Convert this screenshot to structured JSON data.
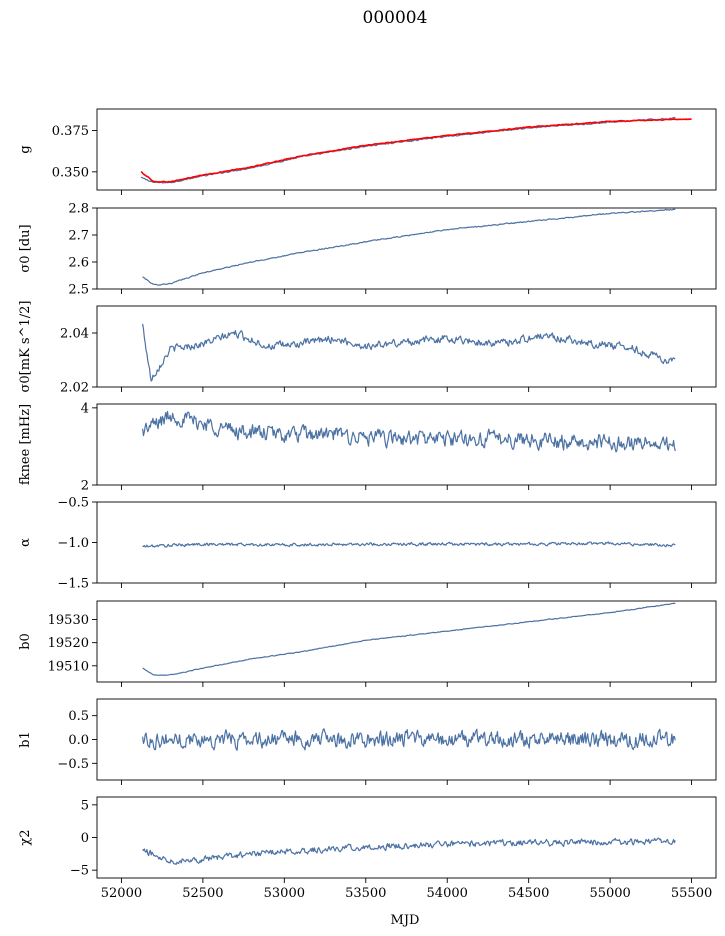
{
  "figure": {
    "title": "000004",
    "xlabel": "MJD"
  },
  "colors": {
    "series": "#4c72a4",
    "fit": "#ff0000"
  },
  "chart_data": [
    {
      "id": "g",
      "type": "line",
      "ylabel": "g",
      "xlim": [
        51850,
        55650
      ],
      "ylim": [
        0.339,
        0.388
      ],
      "yticks": [
        0.35,
        0.375
      ],
      "ytick_labels": [
        "0.350",
        "0.375"
      ],
      "series": [
        {
          "color": "#4c72a4",
          "x": [
            52120,
            52200,
            52300,
            52500,
            52800,
            53100,
            53500,
            54000,
            54500,
            55000,
            55400
          ],
          "y": [
            0.3465,
            0.3435,
            0.3435,
            0.3475,
            0.3525,
            0.359,
            0.3655,
            0.3715,
            0.3765,
            0.38,
            0.3825
          ]
        },
        {
          "color": "#ff0000",
          "x": [
            52120,
            52200,
            52300,
            52500,
            52800,
            53100,
            53500,
            54000,
            54500,
            55000,
            55500
          ],
          "y": [
            0.35,
            0.344,
            0.344,
            0.348,
            0.353,
            0.3595,
            0.366,
            0.372,
            0.377,
            0.3805,
            0.382
          ]
        }
      ]
    },
    {
      "id": "sigma0-du",
      "type": "line",
      "ylabel": "σ0 [du]",
      "xlim": [
        51850,
        55650
      ],
      "ylim": [
        2.5,
        2.8
      ],
      "yticks": [
        2.5,
        2.6,
        2.7,
        2.8
      ],
      "ytick_labels": [
        "2.5",
        "2.6",
        "2.7",
        "2.8"
      ],
      "series": [
        {
          "color": "#4c72a4",
          "x": [
            52130,
            52200,
            52300,
            52500,
            52800,
            53100,
            53500,
            54000,
            54500,
            55000,
            55400
          ],
          "y": [
            2.545,
            2.515,
            2.52,
            2.56,
            2.6,
            2.635,
            2.675,
            2.72,
            2.75,
            2.78,
            2.795
          ]
        }
      ]
    },
    {
      "id": "sigma0-mk",
      "type": "line",
      "ylabel": "σ0[mK s^1/2]",
      "xlim": [
        51850,
        55650
      ],
      "ylim": [
        2.02,
        2.05
      ],
      "yticks": [
        2.02,
        2.04
      ],
      "ytick_labels": [
        "2.02",
        "2.04"
      ],
      "series": [
        {
          "color": "#4c72a4",
          "x": [
            52130,
            52180,
            52300,
            52500,
            52700,
            52900,
            53100,
            53300,
            53500,
            53800,
            54000,
            54300,
            54600,
            54900,
            55100,
            55300,
            55400
          ],
          "y": [
            2.043,
            2.023,
            2.034,
            2.036,
            2.04,
            2.035,
            2.036,
            2.038,
            2.035,
            2.037,
            2.038,
            2.036,
            2.039,
            2.036,
            2.035,
            2.031,
            2.029
          ]
        }
      ]
    },
    {
      "id": "fknee",
      "type": "line",
      "ylabel": "fknee [mHz]",
      "xlim": [
        51850,
        55650
      ],
      "ylim": [
        2.0,
        4.1
      ],
      "yticks": [
        2,
        4
      ],
      "ytick_labels": [
        "2",
        "4"
      ],
      "series": [
        {
          "color": "#4c72a4",
          "x": [
            52130,
            52300,
            52500,
            52700,
            53000,
            53300,
            53600,
            54000,
            54400,
            54800,
            55200,
            55400
          ],
          "y": [
            3.4,
            3.8,
            3.6,
            3.4,
            3.3,
            3.3,
            3.2,
            3.2,
            3.2,
            3.1,
            3.1,
            3.0
          ]
        }
      ]
    },
    {
      "id": "alpha",
      "type": "line",
      "ylabel": "α",
      "xlim": [
        51850,
        55650
      ],
      "ylim": [
        -1.5,
        -0.5
      ],
      "yticks": [
        -1.5,
        -1.0,
        -0.5
      ],
      "ytick_labels": [
        "−1.5",
        "−1.0",
        "−0.5"
      ],
      "series": [
        {
          "color": "#4c72a4",
          "x": [
            52130,
            52500,
            53000,
            53500,
            54000,
            54500,
            55000,
            55400
          ],
          "y": [
            -1.05,
            -1.02,
            -1.03,
            -1.02,
            -1.02,
            -1.02,
            -1.01,
            -1.04
          ]
        }
      ]
    },
    {
      "id": "b0",
      "type": "line",
      "ylabel": "b0",
      "xlim": [
        51850,
        55650
      ],
      "ylim": [
        19503,
        19538
      ],
      "yticks": [
        19510,
        19520,
        19530
      ],
      "ytick_labels": [
        "19510",
        "19520",
        "19530"
      ],
      "series": [
        {
          "color": "#4c72a4",
          "x": [
            52130,
            52200,
            52300,
            52500,
            52800,
            53100,
            53500,
            54000,
            54500,
            55000,
            55400
          ],
          "y": [
            19509,
            19506,
            19506,
            19509,
            19513,
            19516,
            19521,
            19525,
            19529,
            19533,
            19537
          ]
        }
      ]
    },
    {
      "id": "b1",
      "type": "line",
      "ylabel": "b1",
      "xlim": [
        51850,
        55650
      ],
      "ylim": [
        -0.85,
        0.85
      ],
      "yticks": [
        -0.5,
        0.0,
        0.5
      ],
      "ytick_labels": [
        "−0.5",
        "0.0",
        "0.5"
      ],
      "series": [
        {
          "color": "#4c72a4",
          "x": [
            52130,
            53000,
            54000,
            55000,
            55400
          ],
          "y": [
            0.0,
            0.0,
            0.0,
            0.0,
            0.0
          ]
        }
      ]
    },
    {
      "id": "chi2",
      "type": "line",
      "ylabel": "χ2",
      "xlim": [
        51850,
        55650
      ],
      "ylim": [
        -6.2,
        6.2
      ],
      "yticks": [
        -5,
        0,
        5
      ],
      "ytick_labels": [
        "−5",
        "0",
        "5"
      ],
      "xticks": [
        52000,
        52500,
        53000,
        53500,
        54000,
        54500,
        55000,
        55500
      ],
      "xtick_labels": [
        "52000",
        "52500",
        "53000",
        "53500",
        "54000",
        "54500",
        "55000",
        "55500"
      ],
      "series": [
        {
          "color": "#4c72a4",
          "x": [
            52130,
            52300,
            52500,
            52800,
            53100,
            53500,
            54000,
            54500,
            55000,
            55400
          ],
          "y": [
            -2.0,
            -3.5,
            -3.3,
            -2.5,
            -2.0,
            -1.5,
            -1.0,
            -0.8,
            -0.7,
            -0.5
          ]
        }
      ]
    }
  ]
}
